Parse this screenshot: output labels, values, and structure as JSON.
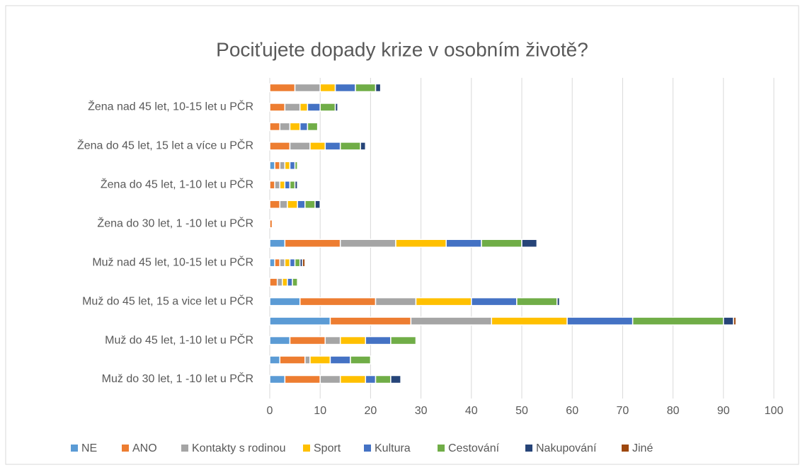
{
  "chart_data": {
    "type": "stacked-barh",
    "title": "Pociťujete dopady krize v osobním životě?",
    "categories": [
      "Muž do 30 let, 1 -10 let u PČR",
      null,
      "Muž do 45 let, 1-10 let u PČR",
      null,
      "Muž do 45 let, 15 a vice let u  PČR",
      null,
      "Muž nad 45 let, 10-15 let u PČR",
      null,
      "Žena do 30 let, 1 -10 let u PČR",
      null,
      "Žena do 45 let, 1-10 let u PČR",
      null,
      "Žena do 45 let, 15 let a více u  PČR",
      null,
      "Žena nad 45 let, 10-15 let u PČR",
      null
    ],
    "series": [
      {
        "name": "NE",
        "color": "#5b9bd5",
        "values": [
          3,
          2,
          4,
          12,
          6,
          0,
          1,
          3,
          0,
          0,
          0,
          1,
          0,
          0,
          0,
          0
        ]
      },
      {
        "name": "ANO",
        "color": "#ed7d31",
        "values": [
          7,
          5,
          7,
          16,
          15,
          1.5,
          1,
          11,
          0.5,
          2,
          1,
          1,
          4,
          2,
          3,
          5
        ]
      },
      {
        "name": "Kontakty s rodinou",
        "color": "#a5a5a5",
        "values": [
          4,
          1,
          3,
          16,
          8,
          1,
          1,
          11,
          0,
          1.5,
          1,
          1,
          4,
          2,
          3,
          5
        ]
      },
      {
        "name": "Sport",
        "color": "#ffc000",
        "values": [
          5,
          4,
          5,
          15,
          11,
          1,
          1,
          10,
          0,
          2,
          1,
          1,
          3,
          2,
          1.5,
          3
        ]
      },
      {
        "name": "Kultura",
        "color": "#4472c4",
        "values": [
          2,
          4,
          5,
          13,
          9,
          1,
          1,
          7,
          0,
          1.5,
          1,
          1,
          3,
          1.5,
          2.5,
          4
        ]
      },
      {
        "name": "Cestování",
        "color": "#70ad47",
        "values": [
          3,
          4,
          5,
          18,
          8,
          1,
          1,
          8,
          0,
          2,
          1,
          0.5,
          4,
          2,
          3,
          4
        ]
      },
      {
        "name": "Nakupování",
        "color": "#264478",
        "values": [
          2,
          0,
          0,
          2,
          0.5,
          0,
          0.5,
          3,
          0,
          1,
          0.5,
          0,
          1,
          0,
          0.5,
          1
        ]
      },
      {
        "name": "Jiné",
        "color": "#9e480e",
        "values": [
          0,
          0,
          0,
          0.5,
          0,
          0,
          0.5,
          0,
          0,
          0,
          0,
          0,
          0,
          0,
          0,
          0
        ]
      }
    ],
    "xlim": [
      0,
      100
    ],
    "xticks": [
      0,
      10,
      20,
      30,
      40,
      50,
      60,
      70,
      80,
      90,
      100
    ],
    "grid": true,
    "legend": "bottom"
  }
}
